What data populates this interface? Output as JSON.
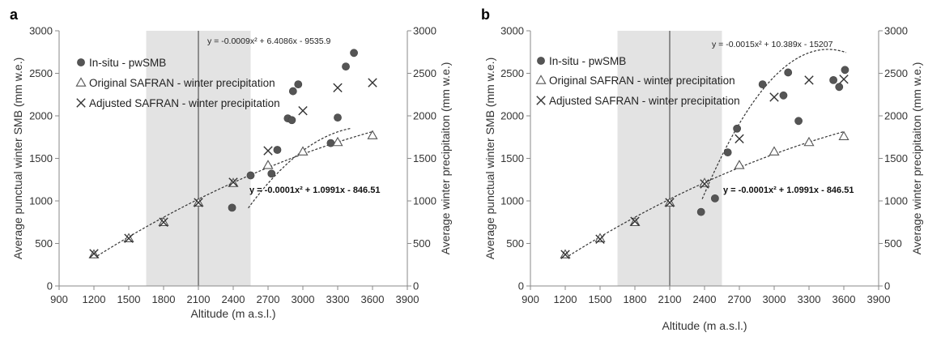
{
  "chart_data": [
    {
      "panel": "a",
      "type": "scatter",
      "xlabel": "Altitude (m a.s.l.)",
      "ylabel": "Average punctual winter SMB (mm w.e.)",
      "y2label": "Average winter precipitaiton (mm w.e.)",
      "xlim": [
        900,
        3900
      ],
      "ylim": [
        0,
        3000
      ],
      "xticks": [
        "900",
        "1200",
        "1500",
        "1800",
        "2100",
        "2400",
        "2700",
        "3000",
        "3300",
        "3600",
        "3900"
      ],
      "yticks": [
        "0",
        "500",
        "1000",
        "1500",
        "2000",
        "2500",
        "3000"
      ],
      "shaded_range": [
        1650,
        2550
      ],
      "vertical_line": 2100,
      "legend_placement": "top-left",
      "series": [
        {
          "name": "In-situ - pwSMB",
          "marker": "circle",
          "points": [
            [
              2390,
              920
            ],
            [
              2550,
              1300
            ],
            [
              2730,
              1320
            ],
            [
              2780,
              1600
            ],
            [
              2870,
              1970
            ],
            [
              2905,
              1950
            ],
            [
              2915,
              2290
            ],
            [
              2960,
              2370
            ],
            [
              3240,
              1680
            ],
            [
              3300,
              1980
            ],
            [
              3370,
              2580
            ],
            [
              3440,
              2740
            ]
          ]
        },
        {
          "name": "Original SAFRAN - winter precipitation",
          "marker": "triangle",
          "points": [
            [
              1200,
              370
            ],
            [
              1500,
              560
            ],
            [
              1800,
              750
            ],
            [
              2100,
              980
            ],
            [
              2400,
              1210
            ],
            [
              2700,
              1420
            ],
            [
              3000,
              1580
            ],
            [
              3300,
              1690
            ],
            [
              3600,
              1770
            ]
          ]
        },
        {
          "name": "Adjusted SAFRAN - winter precipitation",
          "marker": "x",
          "points": [
            [
              1200,
              380
            ],
            [
              1500,
              560
            ],
            [
              1800,
              750
            ],
            [
              2100,
              980
            ],
            [
              2400,
              1220
            ],
            [
              2700,
              1590
            ],
            [
              3000,
              2060
            ],
            [
              3300,
              2330
            ],
            [
              3600,
              2390
            ]
          ]
        }
      ],
      "trendlines": [
        {
          "equation": "y = -0.0009x² + 6.4086x - 9535.9",
          "coefficients": [
            -0.0009,
            6.4086,
            -9535.9
          ],
          "x_range": [
            2530,
            3420
          ]
        },
        {
          "equation": "y = -0.0001x² + 1.0991x - 846.51",
          "coefficients": [
            -0.0001,
            1.0991,
            -846.51
          ],
          "x_range": [
            1200,
            3600
          ]
        }
      ]
    },
    {
      "panel": "b",
      "type": "scatter",
      "xlabel": "Altitude (m a.s.l.)",
      "ylabel": "Average punctual winter SMB (mm w.e.)",
      "y2label": "Average winter precipitaiton (mm w.e.)",
      "xlim": [
        900,
        3900
      ],
      "ylim": [
        0,
        3000
      ],
      "xticks": [
        "900",
        "1200",
        "1500",
        "1800",
        "2100",
        "2400",
        "2700",
        "3000",
        "3300",
        "3600",
        "3900"
      ],
      "yticks": [
        "0",
        "500",
        "1000",
        "1500",
        "2000",
        "2500",
        "3000"
      ],
      "shaded_range": [
        1650,
        2550
      ],
      "vertical_line": 2100,
      "legend_placement": "top-left",
      "series": [
        {
          "name": "In-situ - pwSMB",
          "marker": "circle",
          "points": [
            [
              2370,
              870
            ],
            [
              2490,
              1030
            ],
            [
              2600,
              1570
            ],
            [
              2680,
              1850
            ],
            [
              2900,
              2370
            ],
            [
              3080,
              2240
            ],
            [
              3120,
              2510
            ],
            [
              3210,
              1940
            ],
            [
              3510,
              2420
            ],
            [
              3560,
              2340
            ],
            [
              3610,
              2540
            ]
          ]
        },
        {
          "name": "Original SAFRAN - winter precipitation",
          "marker": "triangle",
          "points": [
            [
              1200,
              370
            ],
            [
              1500,
              560
            ],
            [
              1800,
              750
            ],
            [
              2100,
              980
            ],
            [
              2400,
              1210
            ],
            [
              2700,
              1420
            ],
            [
              3000,
              1580
            ],
            [
              3300,
              1690
            ],
            [
              3600,
              1760
            ]
          ]
        },
        {
          "name": "Adjusted SAFRAN - winter precipitation",
          "marker": "x",
          "points": [
            [
              1200,
              370
            ],
            [
              1500,
              550
            ],
            [
              1800,
              760
            ],
            [
              2100,
              980
            ],
            [
              2400,
              1200
            ],
            [
              2700,
              1730
            ],
            [
              3000,
              2220
            ],
            [
              3300,
              2420
            ],
            [
              3600,
              2430
            ]
          ]
        }
      ],
      "trendlines": [
        {
          "equation": "y = -0.0015x² + 10.389x - 15207",
          "coefficients": [
            -0.0015,
            10.389,
            -15207
          ],
          "x_range": [
            2380,
            3620
          ]
        },
        {
          "equation": "y = -0.0001x² + 1.0991x - 846.51",
          "coefficients": [
            -0.0001,
            1.0991,
            -846.51
          ],
          "x_range": [
            1200,
            3600
          ]
        }
      ]
    }
  ]
}
